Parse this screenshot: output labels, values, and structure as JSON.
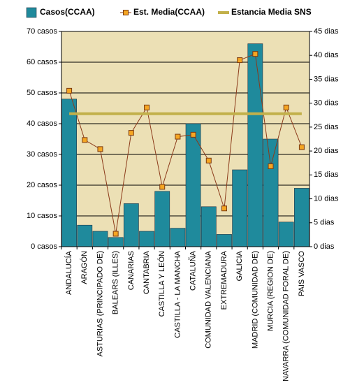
{
  "chart_data": {
    "type": "bar",
    "categories": [
      "ANDALUCÍA",
      "ARAGÓN",
      "ASTURIAS (PRINCIPADO DE)",
      "BALEARS (ILLES)",
      "CANARIAS",
      "CANTABRIA",
      "CASTILLA Y LEÓN",
      "CASTILLA - LA MANCHA",
      "CATALUÑA",
      "COMUNIDAD VALENCIANA",
      "EXTREMADURA",
      "GALICIA",
      "MADRID (COMUNIDAD DE)",
      "MURCIA (REGION DE)",
      "NAVARRA (COMUNIDAD FORAL DE)",
      "PAIS VASCO"
    ],
    "series": [
      {
        "name": "Casos(CCAA)",
        "type": "bar",
        "color": "#1f8a9c",
        "values": [
          48,
          7,
          5,
          3,
          14,
          5,
          18,
          6,
          40,
          13,
          4,
          25,
          66,
          35,
          8,
          19
        ]
      },
      {
        "name": "Est. Media(CCAA)",
        "type": "line",
        "axis": "y2",
        "color": "#8b3a1a",
        "marker_color": "#f5a623",
        "values": [
          32.6,
          22.3,
          20.4,
          2.7,
          23.8,
          29.1,
          12.5,
          23,
          23.4,
          18,
          8,
          39,
          40.3,
          16.8,
          29.1,
          20.8
        ]
      },
      {
        "name": "Estancia Media SNS",
        "type": "line",
        "axis": "y2",
        "color": "#c2b04a",
        "values": [
          27.8,
          27.8,
          27.8,
          27.8,
          27.8,
          27.8,
          27.8,
          27.8,
          27.8,
          27.8,
          27.8,
          27.8,
          27.8,
          27.8,
          27.8,
          27.8
        ]
      }
    ],
    "ylim": [
      0,
      70
    ],
    "yticks": [
      {
        "value": 0,
        "label": "0 casos"
      },
      {
        "value": 10,
        "label": "10 casos"
      },
      {
        "value": 20,
        "label": "20 casos"
      },
      {
        "value": 30,
        "label": "30 casos"
      },
      {
        "value": 40,
        "label": "40 casos"
      },
      {
        "value": 50,
        "label": "50 casos"
      },
      {
        "value": 60,
        "label": "60 casos"
      },
      {
        "value": 70,
        "label": "70 casos"
      }
    ],
    "y2lim": [
      0,
      45
    ],
    "y2ticks": [
      {
        "value": 0,
        "label": "0 dias"
      },
      {
        "value": 5,
        "label": "5 dias"
      },
      {
        "value": 10,
        "label": "10 dias"
      },
      {
        "value": 15,
        "label": "15 dias"
      },
      {
        "value": 20,
        "label": "20 dias"
      },
      {
        "value": 25,
        "label": "25 dias"
      },
      {
        "value": 30,
        "label": "30 dias"
      },
      {
        "value": 35,
        "label": "35 dias"
      },
      {
        "value": 40,
        "label": "40 dias"
      },
      {
        "value": 45,
        "label": "45 dias"
      }
    ],
    "grid": true,
    "legend": "top",
    "background": "#ece0b5"
  }
}
